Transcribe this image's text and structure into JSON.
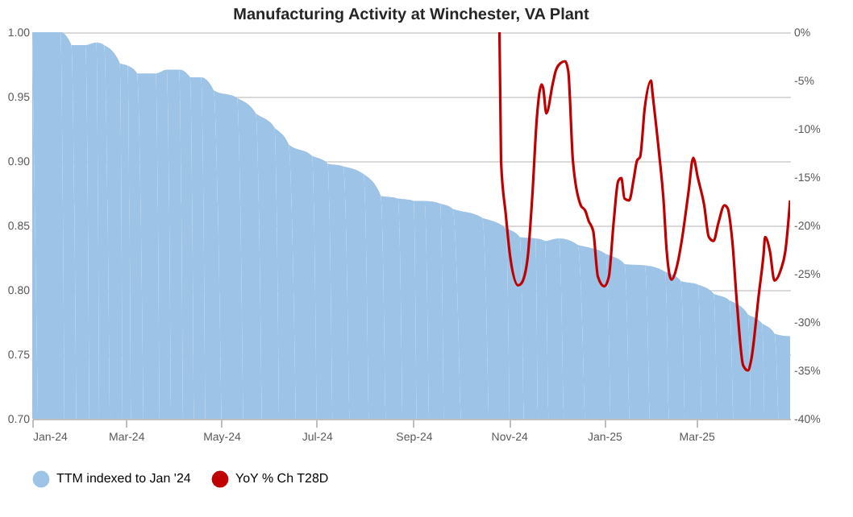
{
  "chart_data": {
    "type": "area",
    "title": "Manufacturing Activity at Winchester, VA Plant",
    "xlim": [
      "2024-01-01",
      "2025-04-30"
    ],
    "xticks": [
      {
        "value": "2024-01-01",
        "label": "Jan-24"
      },
      {
        "value": "2024-03-01",
        "label": "Mar-24"
      },
      {
        "value": "2024-05-01",
        "label": "May-24"
      },
      {
        "value": "2024-07-01",
        "label": "Jul-24"
      },
      {
        "value": "2024-09-01",
        "label": "Sep-24"
      },
      {
        "value": "2024-11-01",
        "label": "Nov-24"
      },
      {
        "value": "2025-01-01",
        "label": "Jan-25"
      },
      {
        "value": "2025-03-01",
        "label": "Mar-25"
      }
    ],
    "ylim": [
      0.7,
      1.0
    ],
    "yticks": [
      {
        "value": 0.7,
        "label": "0.70"
      },
      {
        "value": 0.75,
        "label": "0.75"
      },
      {
        "value": 0.8,
        "label": "0.80"
      },
      {
        "value": 0.85,
        "label": "0.85"
      },
      {
        "value": 0.9,
        "label": "0.90"
      },
      {
        "value": 0.95,
        "label": "0.95"
      },
      {
        "value": 1.0,
        "label": "1.00"
      }
    ],
    "y2lim": [
      -40,
      0
    ],
    "y2ticks": [
      {
        "value": -40,
        "label": "-40%"
      },
      {
        "value": -35,
        "label": "-35%"
      },
      {
        "value": -30,
        "label": "-30%"
      },
      {
        "value": -25,
        "label": "-25%"
      },
      {
        "value": -20,
        "label": "-20%"
      },
      {
        "value": -15,
        "label": "-15%"
      },
      {
        "value": -10,
        "label": "-10%"
      },
      {
        "value": -5,
        "label": "-5%"
      },
      {
        "value": 0,
        "label": "0%"
      }
    ],
    "grid": "y",
    "legend": "bottom",
    "series": [
      {
        "name": "TTM indexed to Jan '24",
        "color": "#9dc3e6",
        "x": [
          "2024-01-01",
          "2024-01-19",
          "2024-01-26",
          "2024-02-04",
          "2024-02-11",
          "2024-02-16",
          "2024-02-26",
          "2024-03-02",
          "2024-03-08",
          "2024-03-20",
          "2024-03-27",
          "2024-04-04",
          "2024-04-11",
          "2024-04-18",
          "2024-04-26",
          "2024-05-11",
          "2024-05-23",
          "2024-06-04",
          "2024-06-13",
          "2024-06-28",
          "2024-07-08",
          "2024-07-18",
          "2024-07-31",
          "2024-08-11",
          "2024-08-22",
          "2024-09-01",
          "2024-09-08",
          "2024-09-18",
          "2024-09-26",
          "2024-10-15",
          "2024-10-30",
          "2024-11-08",
          "2024-11-18",
          "2024-11-24",
          "2024-12-03",
          "2024-12-15",
          "2025-01-02",
          "2025-01-14",
          "2025-01-27",
          "2025-02-09",
          "2025-02-19",
          "2025-03-02",
          "2025-03-12",
          "2025-03-22",
          "2025-04-03",
          "2025-04-12",
          "2025-04-20",
          "2025-04-30"
        ],
        "values": [
          1.0,
          1.0,
          0.99,
          0.99,
          0.992,
          0.99,
          0.976,
          0.974,
          0.968,
          0.968,
          0.971,
          0.971,
          0.965,
          0.965,
          0.955,
          0.949,
          0.937,
          0.926,
          0.913,
          0.904,
          0.898,
          0.896,
          0.89,
          0.873,
          0.871,
          0.869,
          0.869,
          0.867,
          0.863,
          0.856,
          0.848,
          0.841,
          0.84,
          0.838,
          0.84,
          0.835,
          0.828,
          0.82,
          0.819,
          0.814,
          0.807,
          0.804,
          0.797,
          0.792,
          0.781,
          0.774,
          0.766,
          0.764
        ]
      },
      {
        "name": "YoY % Ch T28D",
        "type": "line",
        "axis": "y2",
        "color": "#c00000",
        "x": [
          "2024-10-26",
          "2024-10-27",
          "2024-10-30",
          "2024-11-02",
          "2024-11-07",
          "2024-11-09",
          "2024-11-13",
          "2024-11-16",
          "2024-11-19",
          "2024-11-22",
          "2024-11-23",
          "2024-11-25",
          "2024-11-29",
          "2024-12-01",
          "2024-12-04",
          "2024-12-07",
          "2024-12-09",
          "2024-12-12",
          "2024-12-17",
          "2024-12-20",
          "2024-12-22",
          "2024-12-25",
          "2024-12-28",
          "2025-01-01",
          "2025-01-04",
          "2025-01-07",
          "2025-01-10",
          "2025-01-12",
          "2025-01-14",
          "2025-01-17",
          "2025-01-20",
          "2025-01-22",
          "2025-01-24",
          "2025-01-27",
          "2025-01-31",
          "2025-02-01",
          "2025-02-05",
          "2025-02-08",
          "2025-02-10",
          "2025-02-13",
          "2025-02-17",
          "2025-02-20",
          "2025-02-24",
          "2025-02-27",
          "2025-03-02",
          "2025-03-06",
          "2025-03-09",
          "2025-03-12",
          "2025-03-15",
          "2025-03-19",
          "2025-03-21",
          "2025-03-24",
          "2025-03-27",
          "2025-03-31",
          "2025-04-03",
          "2025-04-05",
          "2025-04-10",
          "2025-04-13",
          "2025-04-14",
          "2025-04-17",
          "2025-04-20",
          "2025-04-24",
          "2025-04-27",
          "2025-04-30"
        ],
        "values": [
          0,
          -13.3,
          -18.8,
          -23.4,
          -26.2,
          -26,
          -23.4,
          -17,
          -8.7,
          -5.4,
          -5.8,
          -8.4,
          -5.4,
          -4,
          -3.2,
          -3,
          -4,
          -13.3,
          -17.9,
          -18.5,
          -19.5,
          -20.6,
          -25.3,
          -26.3,
          -25.3,
          -19.8,
          -15.4,
          -15.1,
          -17.2,
          -17.4,
          -15.1,
          -13.3,
          -12.9,
          -7.8,
          -5,
          -6.4,
          -12.3,
          -17.4,
          -22.6,
          -25.6,
          -23.9,
          -21.2,
          -16.5,
          -13,
          -15.1,
          -17.9,
          -21.2,
          -21.6,
          -19.8,
          -17.9,
          -18.2,
          -21.6,
          -28.1,
          -34.5,
          -35,
          -34,
          -27.1,
          -23,
          -21.2,
          -22.6,
          -25.7,
          -24.6,
          -22.6,
          -17.4
        ]
      }
    ]
  }
}
